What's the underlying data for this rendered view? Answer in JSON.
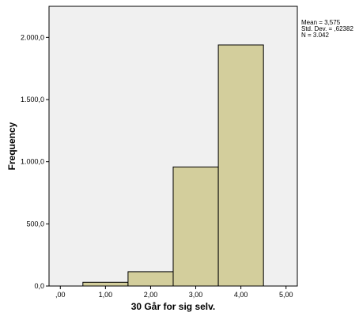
{
  "chart_data": {
    "type": "bar",
    "xlabel": "30 Går for sig selv.",
    "ylabel": "Frequency",
    "x_ticks": [
      ",00",
      "1,00",
      "2,00",
      "3,00",
      "4,00",
      "5,00"
    ],
    "y_ticks": [
      "0,0",
      "500,0",
      "1.000,0",
      "1.500,0",
      "2.000,0"
    ],
    "xlim": [
      -0.25,
      5.25
    ],
    "ylim": [
      0,
      2250
    ],
    "bins": [
      {
        "start": 0.5,
        "end": 1.5,
        "value": 30
      },
      {
        "start": 1.5,
        "end": 2.5,
        "value": 115
      },
      {
        "start": 2.5,
        "end": 3.5,
        "value": 958
      },
      {
        "start": 3.5,
        "end": 4.5,
        "value": 1939
      }
    ],
    "stats": [
      "Mean = 3,575",
      "Std. Dev. = ,62382",
      "N = 3.042"
    ],
    "grid": false,
    "colors": {
      "bar_fill": "#d3ce9c",
      "bar_stroke": "#000000",
      "plot_background": "#f0f0f0",
      "axis": "#000000"
    }
  }
}
